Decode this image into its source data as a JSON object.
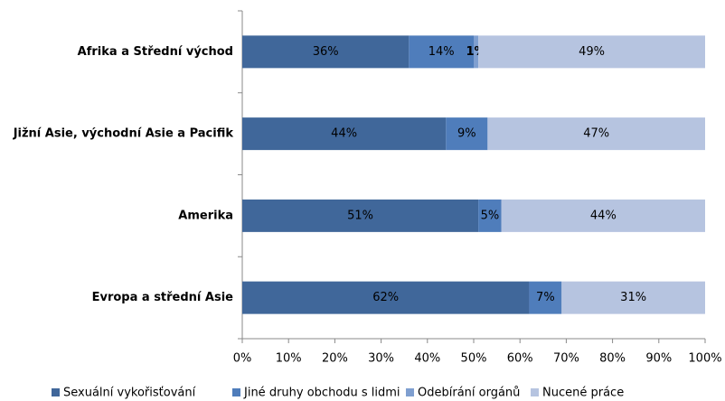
{
  "chart_data": {
    "type": "stacked-bar-horizontal",
    "categories": [
      "Afrika a Střední východ",
      "Jižní Asie, východní Asie a Pacifik",
      "Amerika",
      "Evropa a střední Asie"
    ],
    "series": [
      {
        "name": "Sexuální vykořisťování",
        "color": "#40679a",
        "values": [
          36,
          44,
          51,
          62
        ],
        "value_labels": [
          "36%",
          "44%",
          "51%",
          "62%"
        ]
      },
      {
        "name": "Jiné druhy obchodu s lidmi",
        "color": "#4f7dbb",
        "values": [
          14,
          9,
          5,
          7
        ],
        "value_labels": [
          "14%",
          "9%",
          "5%",
          "7%"
        ]
      },
      {
        "name": "Odebírání orgánů",
        "color": "#7f9fd0",
        "values": [
          1,
          null,
          null,
          null
        ],
        "value_labels": [
          "1%",
          null,
          null,
          null
        ]
      },
      {
        "name": "Nucené práce",
        "color": "#b6c4e0",
        "values": [
          49,
          47,
          44,
          31
        ],
        "value_labels": [
          "49%",
          "47%",
          "44%",
          "31%"
        ]
      }
    ],
    "xlim": [
      0,
      100
    ],
    "xticks": [
      {
        "value": 0,
        "label": "0%"
      },
      {
        "value": 10,
        "label": "10%"
      },
      {
        "value": 20,
        "label": "20%"
      },
      {
        "value": 30,
        "label": "30%"
      },
      {
        "value": 40,
        "label": "40%"
      },
      {
        "value": 50,
        "label": "50%"
      },
      {
        "value": 60,
        "label": "60%"
      },
      {
        "value": 70,
        "label": "70%"
      },
      {
        "value": 80,
        "label": "80%"
      },
      {
        "value": 90,
        "label": "90%"
      },
      {
        "value": 100,
        "label": "100%"
      }
    ],
    "legend": "bottom"
  }
}
